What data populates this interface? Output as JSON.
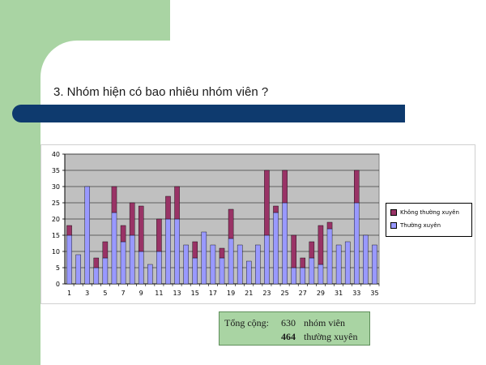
{
  "slide": {
    "title": "3. Nhóm hiện có bao nhiêu nhóm viên ?",
    "colors": {
      "green_panel": "#a9d4a3",
      "title_bar": "#0e3a6e"
    }
  },
  "summary": {
    "label": "Tổng cộng:",
    "total_value": "630",
    "total_unit": "nhóm viên",
    "regular_value": "464",
    "regular_unit": "thường xuyên"
  },
  "chart_data": {
    "type": "bar",
    "stacked": true,
    "categories": [
      "1",
      "2",
      "3",
      "4",
      "5",
      "6",
      "7",
      "8",
      "9",
      "10",
      "11",
      "12",
      "13",
      "14",
      "15",
      "16",
      "17",
      "18",
      "19",
      "20",
      "21",
      "22",
      "23",
      "24",
      "25",
      "26",
      "27",
      "28",
      "29",
      "30",
      "31",
      "32",
      "33",
      "34",
      "35"
    ],
    "x_tick_labels": [
      "1",
      "3",
      "5",
      "7",
      "9",
      "11",
      "13",
      "15",
      "17",
      "19",
      "21",
      "23",
      "25",
      "27",
      "29",
      "31",
      "33",
      "35"
    ],
    "series": [
      {
        "name": "Thường xuyên",
        "color": "#9999ff",
        "values": [
          15,
          9,
          30,
          5,
          8,
          22,
          13,
          15,
          10,
          6,
          10,
          20,
          20,
          12,
          8,
          16,
          12,
          8,
          14,
          12,
          7,
          12,
          15,
          22,
          25,
          5,
          5,
          8,
          6,
          17,
          12,
          13,
          25,
          15,
          12
        ]
      },
      {
        "name": "Không thường xuyên",
        "color": "#993366",
        "values": [
          3,
          0,
          0,
          3,
          5,
          8,
          5,
          10,
          14,
          0,
          10,
          7,
          10,
          0,
          5,
          0,
          0,
          3,
          9,
          0,
          0,
          0,
          20,
          2,
          10,
          10,
          3,
          5,
          12,
          2,
          0,
          0,
          10,
          0,
          0
        ]
      }
    ],
    "ylim": [
      0,
      40
    ],
    "y_ticks": [
      0,
      5,
      10,
      15,
      20,
      25,
      30,
      35,
      40
    ],
    "grid": true,
    "plot_background": "#c0c0c0",
    "legend_position": "right"
  }
}
